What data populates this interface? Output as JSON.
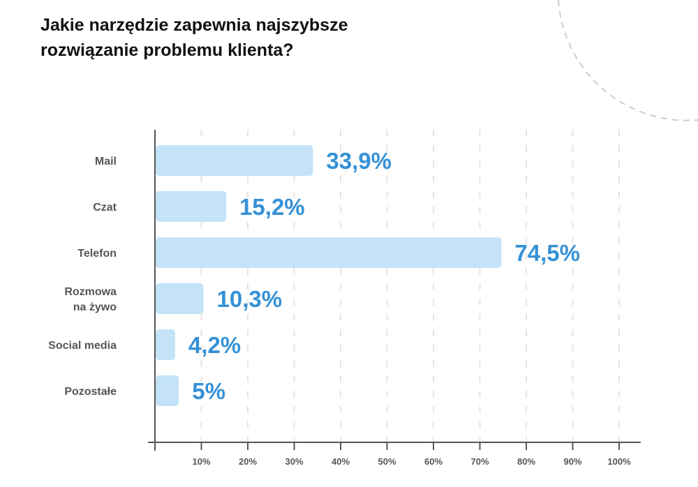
{
  "chart_data": {
    "type": "bar",
    "orientation": "horizontal",
    "title": [
      "Jakie narzędzie zapewnia najszybsze",
      "rozwiązanie problemu klienta?"
    ],
    "categories": [
      [
        "Mail"
      ],
      [
        "Czat"
      ],
      [
        "Telefon"
      ],
      [
        "Rozmowa",
        "na żywo"
      ],
      [
        "Social media"
      ],
      [
        "Pozostałe"
      ]
    ],
    "values": [
      33.9,
      15.2,
      74.5,
      10.3,
      4.2,
      5
    ],
    "value_labels": [
      "33,9%",
      "15,2%",
      "74,5%",
      "10,3%",
      "4,2%",
      "5%"
    ],
    "xlim": [
      0,
      100
    ],
    "ticks": [
      10,
      20,
      30,
      40,
      50,
      60,
      70,
      80,
      90,
      100
    ],
    "tick_labels": [
      "10%",
      "20%",
      "30%",
      "40%",
      "50%",
      "60%",
      "70%",
      "80%",
      "90%",
      "100%"
    ],
    "grid": "vertical dashed",
    "xlabel": "",
    "ylabel": ""
  },
  "colors": {
    "bar": "#c4e3f8",
    "value_text": "#3591d6",
    "axis": "#555555",
    "grid": "#e4e4e4",
    "decor": "#cccccc"
  }
}
